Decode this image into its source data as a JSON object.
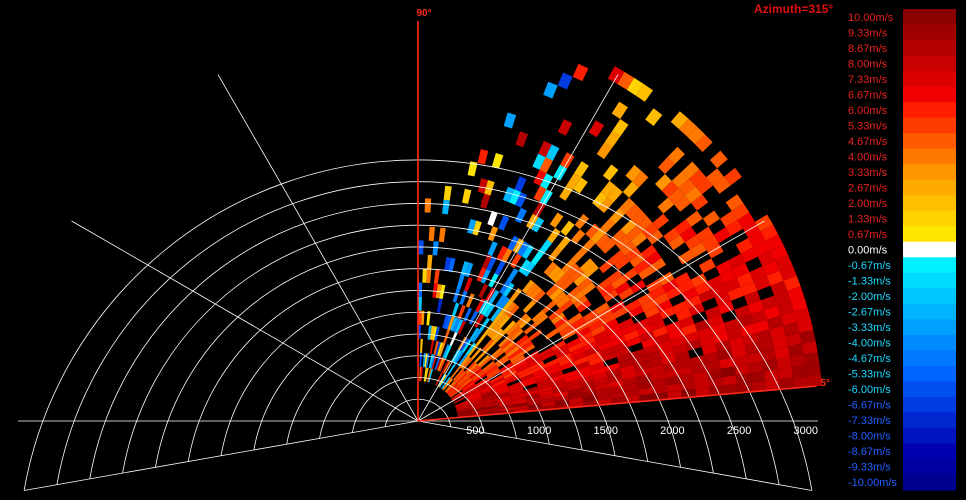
{
  "title": "Azimuth=315°",
  "colors": {
    "background": "#000000",
    "grid": "#ffffff",
    "sector_edge": "#ff2a1a",
    "title": "#e01010",
    "range_label": "#ffffff"
  },
  "chart_data": {
    "type": "heatmap",
    "projection": "polar-sector (RHI)",
    "azimuth_deg": 315,
    "elevation_range_deg": [
      5,
      90
    ],
    "elevation_labels": [
      "90°",
      "5°"
    ],
    "range_ticks": [
      500,
      1000,
      1500,
      2000,
      2500,
      3000
    ],
    "range_max": 3000,
    "range_rings": [
      250,
      500,
      750,
      1000,
      1250,
      1500,
      1750,
      2000,
      2250,
      2500,
      2750,
      3000
    ],
    "spokes_deg": [
      -10,
      0,
      30,
      60,
      90,
      120,
      150,
      180,
      190
    ],
    "colorbar": {
      "unit": "m/s",
      "labels": [
        "10.00m/s",
        "9.33m/s",
        "8.67m/s",
        "8.00m/s",
        "7.33m/s",
        "6.67m/s",
        "6.00m/s",
        "5.33m/s",
        "4.67m/s",
        "4.00m/s",
        "3.33m/s",
        "2.67m/s",
        "2.00m/s",
        "1.33m/s",
        "0.67m/s",
        "0.00m/s",
        "-0.67m/s",
        "-1.33m/s",
        "-2.00m/s",
        "-2.67m/s",
        "-3.33m/s",
        "-4.00m/s",
        "-4.67m/s",
        "-5.33m/s",
        "-6.00m/s",
        "-6.67m/s",
        "-7.33m/s",
        "-8.00m/s",
        "-8.67m/s",
        "-9.33m/s",
        "-10.00m/s"
      ],
      "colors": [
        "#8b0000",
        "#a00000",
        "#b40000",
        "#c80000",
        "#dc0000",
        "#f00000",
        "#ff1e00",
        "#ff3c00",
        "#ff5a00",
        "#ff7800",
        "#ff9600",
        "#ffaa00",
        "#ffbe00",
        "#ffd200",
        "#ffe600",
        "#ffffff",
        "#00f0ff",
        "#00dcff",
        "#00c8ff",
        "#00b4ff",
        "#00a0ff",
        "#008cff",
        "#0078ff",
        "#0064ff",
        "#0050f0",
        "#003ce0",
        "#0028d0",
        "#0014c0",
        "#0000b0",
        "#0000a0",
        "#000090"
      ]
    }
  }
}
